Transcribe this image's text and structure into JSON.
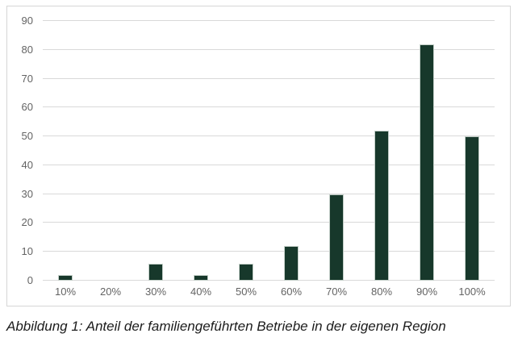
{
  "chart": {
    "background": "#ffffff",
    "frame_border_color": "#d6d6d6"
  },
  "chart_data": {
    "type": "bar",
    "categories": [
      "10%",
      "20%",
      "30%",
      "40%",
      "50%",
      "60%",
      "70%",
      "80%",
      "90%",
      "100%"
    ],
    "values": [
      2,
      0,
      6,
      2,
      6,
      12,
      30,
      52,
      82,
      50
    ],
    "title": "",
    "xlabel": "",
    "ylabel": "",
    "ylim": [
      0,
      90
    ],
    "yticks": [
      0,
      10,
      20,
      30,
      40,
      50,
      60,
      70,
      80,
      90
    ],
    "grid": true,
    "legend": false,
    "bar_color": "#17382b",
    "bar_border_color": "#c3cfc8",
    "gridline_color": "#d9d9d9",
    "axis_label_color": "#636363"
  },
  "caption": {
    "text": "Abbildung 1: Anteil der familiengeführten Betriebe in der eigenen Region"
  }
}
